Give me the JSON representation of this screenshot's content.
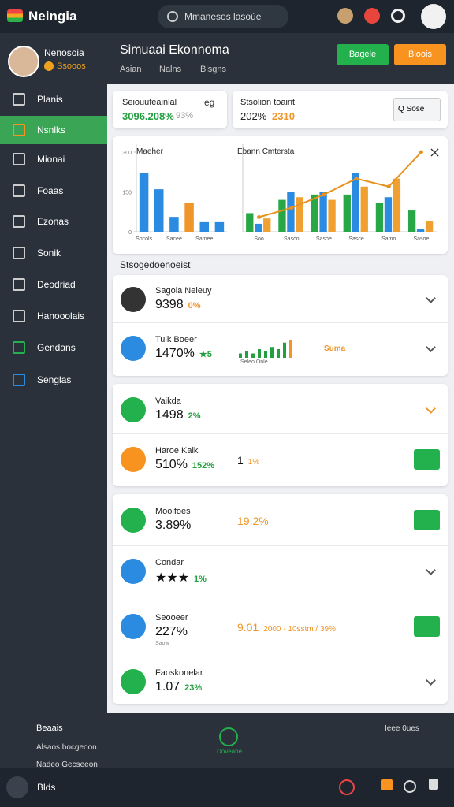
{
  "topbar": {
    "brand": "Neingia",
    "search": "Mmanesos lasoùe"
  },
  "sidebar": {
    "profile": {
      "name": "Nenosoia",
      "points": "Ssooos"
    },
    "menu": [
      "Planis",
      "Nsnlks",
      "Mionai",
      "Foaas",
      "Ezonas",
      "Sonik",
      "Deodriad",
      "Hanooolais",
      "Gendans",
      "Senglas"
    ]
  },
  "header": {
    "title": "Simuaai Ekonnoma",
    "tabs": [
      "Asian",
      "Nalns",
      "Bisgns"
    ],
    "buttons": [
      "Bagele",
      "Bloois"
    ]
  },
  "summary": [
    {
      "label": "Seiouufeainlal",
      "value": "3096.208%",
      "change": "93%",
      "icon": "eg"
    },
    {
      "label": "Stsolion toaint",
      "value": "202%",
      "change": "2310",
      "select": "Q Sose"
    }
  ],
  "main_chart": {
    "left": {
      "title": "Maeher",
      "categories": [
        "Sbcols",
        null,
        "Sacee",
        null,
        "Samee",
        null
      ],
      "values": [
        220,
        160,
        56,
        110,
        36,
        36
      ],
      "colors": [
        "#2b8be0",
        "#2b8be0",
        "#2b8be0",
        "#f0952a",
        "#2b8be0",
        "#2b8be0"
      ],
      "ylim": [
        0,
        300
      ],
      "yticks": [
        0,
        150,
        300
      ]
    },
    "right": {
      "title": "Ebann Cmtersta",
      "categories": [
        "Soo",
        "Sasco",
        "Sasoe",
        "Sasce",
        "Samo",
        "Sasoe"
      ],
      "ylim": [
        0,
        300
      ],
      "series": [
        {
          "color": "#27a745",
          "values": [
            70,
            120,
            140,
            140,
            110,
            80
          ]
        },
        {
          "color": "#2b8be0",
          "values": [
            30,
            150,
            150,
            220,
            130,
            10
          ]
        },
        {
          "color": "#f0a030",
          "values": [
            50,
            130,
            120,
            170,
            200,
            40
          ]
        }
      ],
      "line": {
        "color": "#e8921e",
        "values": [
          55,
          90,
          140,
          200,
          170,
          300
        ]
      }
    }
  },
  "section_title": "Stsogedoenoeist",
  "cards": [
    [
      {
        "title": "Sagola Neleuy",
        "value": "9398",
        "change": "0%"
      },
      {
        "title": "Tuik Boeer",
        "value": "1470%",
        "change": "★5",
        "spark": [
          2,
          3,
          2,
          4,
          3,
          5,
          4,
          7,
          8
        ],
        "spark_label": "Seleo Onle",
        "side": "Suma"
      }
    ],
    [
      {
        "title": "Vaikda",
        "value": "1498",
        "change": "2%"
      },
      {
        "title": "Haroe Kaik",
        "value": "510%",
        "change": "152%",
        "right_value": "1",
        "right_change": "1%"
      }
    ],
    [
      {
        "title": "Mooifoes",
        "value": "3.89%",
        "right_value": "19.2%"
      },
      {
        "title": "Condar",
        "value": "★★★",
        "change": "1%"
      },
      {
        "title": "Seooeer",
        "value": "227%",
        "small": "Saow",
        "right_value": "9.01",
        "right_change": "2000 - 10sstm / 39%"
      },
      {
        "title": "Faoskonelar",
        "value": "1.07",
        "change": "23%"
      }
    ]
  ],
  "footer": {
    "left": [
      "Beaais",
      "Alsaos bocgeoon",
      "Nadeo Gecseeon"
    ],
    "center": "Doveane",
    "right": "Ieee 0ues"
  },
  "bottombar": {
    "label": "Blds"
  }
}
